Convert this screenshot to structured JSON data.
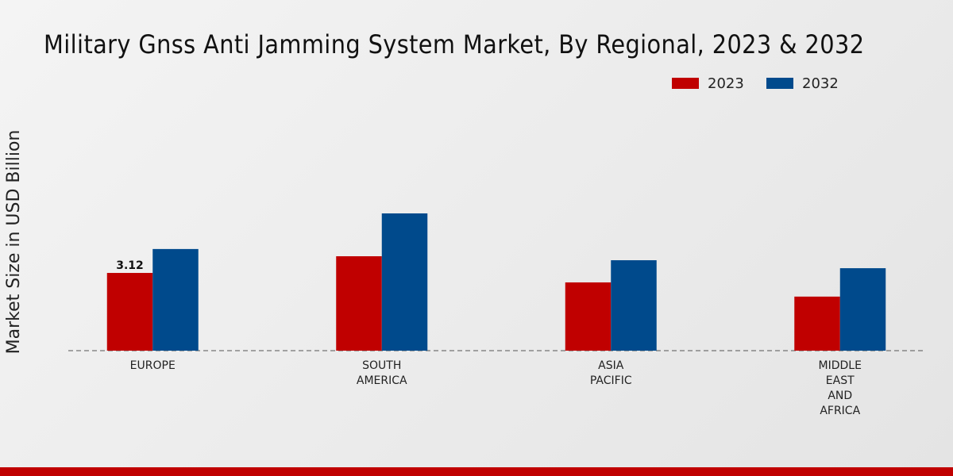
{
  "chart_data": {
    "type": "bar",
    "title": "Military Gnss Anti Jamming System Market, By Regional, 2023 & 2032",
    "y_label": "Market Size in USD Billion",
    "categories": [
      "EUROPE",
      "SOUTH AMERICA",
      "ASIA PACIFIC",
      "MIDDLE EAST AND AFRICA"
    ],
    "series": [
      {
        "name": "2023",
        "color": "#c00000",
        "values": [
          3.12,
          3.79,
          2.74,
          2.17
        ]
      },
      {
        "name": "2032",
        "color": "#004a8c",
        "values": [
          4.08,
          5.51,
          3.63,
          3.31
        ]
      }
    ],
    "ylim": [
      0,
      10
    ]
  }
}
